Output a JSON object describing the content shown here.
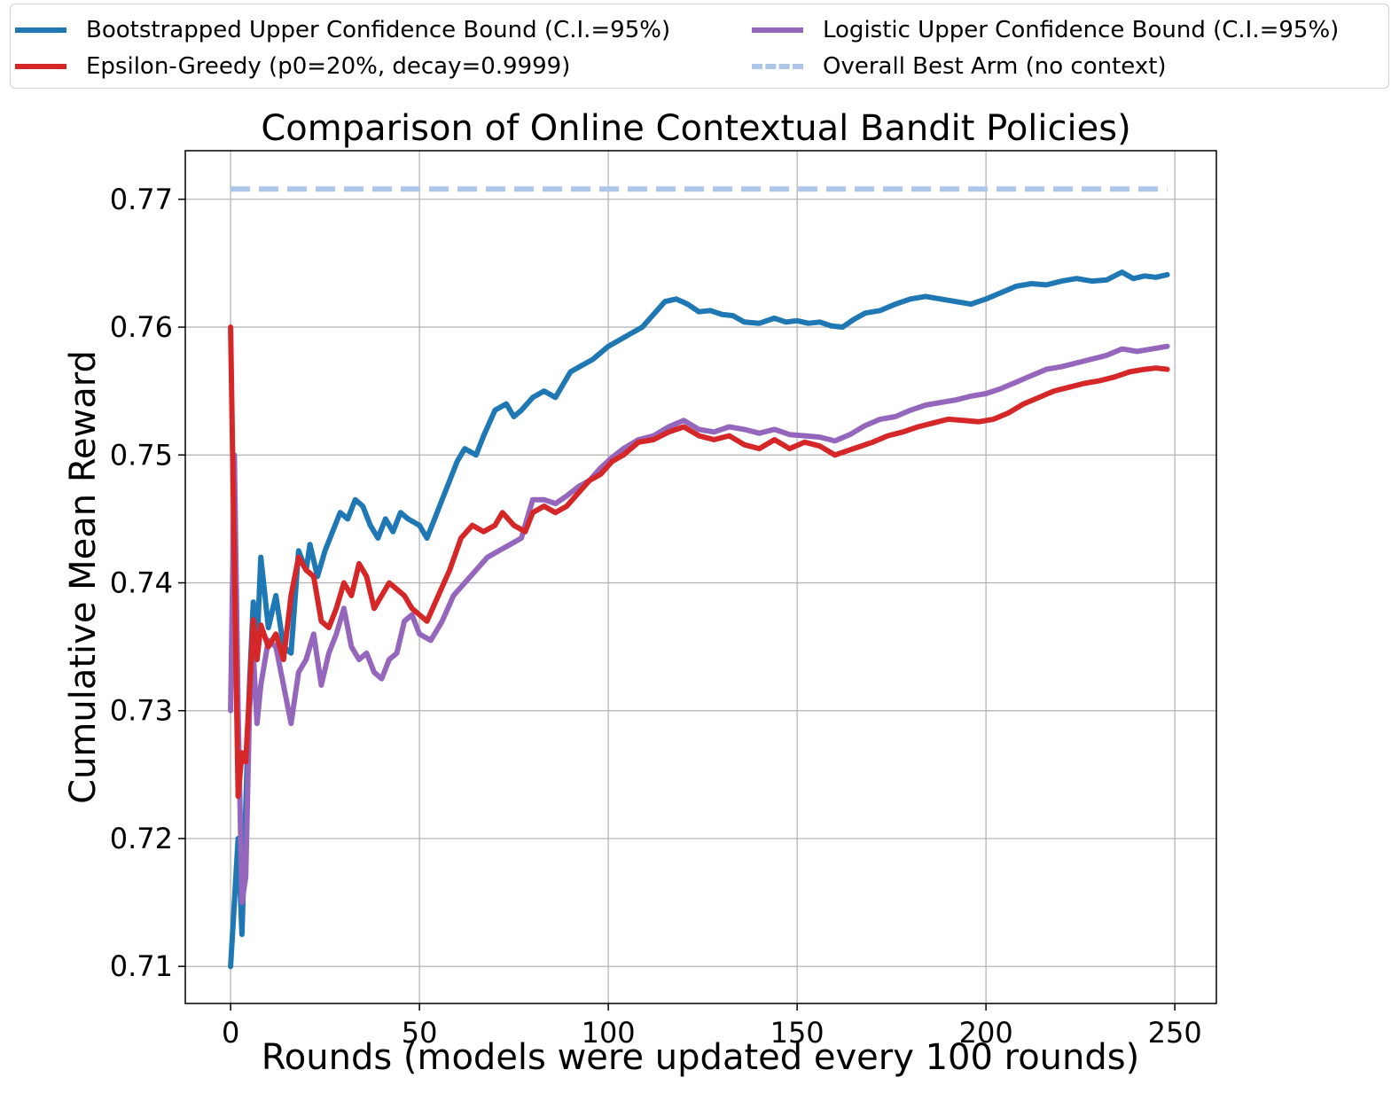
{
  "chart_data": {
    "type": "line",
    "title": "Comparison of Online Contextual Bandit Policies)",
    "xlabel": "Rounds (models were updated every 100 rounds)",
    "ylabel": "Cumulative Mean Reward",
    "xlim": [
      -12,
      261
    ],
    "ylim": [
      0.7071,
      0.7738
    ],
    "xticks": [
      0,
      50,
      100,
      150,
      200,
      250
    ],
    "yticks": [
      0.71,
      0.72,
      0.73,
      0.74,
      0.75,
      0.76,
      0.77
    ],
    "xtick_labels": [
      "0",
      "50",
      "100",
      "150",
      "200",
      "250"
    ],
    "ytick_labels": [
      "0.71",
      "0.72",
      "0.73",
      "0.74",
      "0.75",
      "0.76",
      "0.77"
    ],
    "grid": true,
    "legend_placement": "above plot, two columns",
    "series": [
      {
        "name": "Bootstrapped Upper Confidence Bound (C.I.=95%)",
        "color": "#1f77b4",
        "style": "solid",
        "points": [
          [
            0,
            0.71
          ],
          [
            2,
            0.72
          ],
          [
            3,
            0.7125
          ],
          [
            5,
            0.732
          ],
          [
            6,
            0.7385
          ],
          [
            7,
            0.735
          ],
          [
            8,
            0.742
          ],
          [
            10,
            0.7365
          ],
          [
            12,
            0.739
          ],
          [
            14,
            0.735
          ],
          [
            16,
            0.7345
          ],
          [
            18,
            0.7425
          ],
          [
            20,
            0.741
          ],
          [
            21,
            0.743
          ],
          [
            23,
            0.7405
          ],
          [
            25,
            0.7425
          ],
          [
            27,
            0.744
          ],
          [
            29,
            0.7455
          ],
          [
            31,
            0.745
          ],
          [
            33,
            0.7465
          ],
          [
            35,
            0.746
          ],
          [
            37,
            0.7445
          ],
          [
            39,
            0.7435
          ],
          [
            41,
            0.745
          ],
          [
            43,
            0.744
          ],
          [
            45,
            0.7455
          ],
          [
            47,
            0.745
          ],
          [
            50,
            0.7445
          ],
          [
            52,
            0.7435
          ],
          [
            54,
            0.745
          ],
          [
            56,
            0.7465
          ],
          [
            58,
            0.748
          ],
          [
            60,
            0.7495
          ],
          [
            62,
            0.7505
          ],
          [
            65,
            0.75
          ],
          [
            67,
            0.7515
          ],
          [
            70,
            0.7535
          ],
          [
            73,
            0.754
          ],
          [
            75,
            0.753
          ],
          [
            77,
            0.7535
          ],
          [
            80,
            0.7545
          ],
          [
            83,
            0.755
          ],
          [
            86,
            0.7545
          ],
          [
            88,
            0.7555
          ],
          [
            90,
            0.7565
          ],
          [
            93,
            0.757
          ],
          [
            96,
            0.7575
          ],
          [
            100,
            0.7585
          ],
          [
            103,
            0.759
          ],
          [
            106,
            0.7595
          ],
          [
            109,
            0.76
          ],
          [
            112,
            0.761
          ],
          [
            115,
            0.762
          ],
          [
            118,
            0.7622
          ],
          [
            121,
            0.7618
          ],
          [
            124,
            0.7612
          ],
          [
            127,
            0.7613
          ],
          [
            130,
            0.761
          ],
          [
            133,
            0.7609
          ],
          [
            136,
            0.7604
          ],
          [
            140,
            0.7603
          ],
          [
            144,
            0.7607
          ],
          [
            147,
            0.7604
          ],
          [
            150,
            0.7605
          ],
          [
            153,
            0.7603
          ],
          [
            156,
            0.7604
          ],
          [
            159,
            0.7601
          ],
          [
            162,
            0.76
          ],
          [
            165,
            0.7606
          ],
          [
            168,
            0.7611
          ],
          [
            172,
            0.7613
          ],
          [
            176,
            0.7618
          ],
          [
            180,
            0.7622
          ],
          [
            184,
            0.7624
          ],
          [
            188,
            0.7622
          ],
          [
            192,
            0.762
          ],
          [
            196,
            0.7618
          ],
          [
            200,
            0.7622
          ],
          [
            204,
            0.7627
          ],
          [
            208,
            0.7632
          ],
          [
            212,
            0.7634
          ],
          [
            216,
            0.7633
          ],
          [
            220,
            0.7636
          ],
          [
            224,
            0.7638
          ],
          [
            228,
            0.7636
          ],
          [
            232,
            0.7637
          ],
          [
            236,
            0.7643
          ],
          [
            239,
            0.7638
          ],
          [
            242,
            0.764
          ],
          [
            245,
            0.7639
          ],
          [
            248,
            0.7641
          ]
        ]
      },
      {
        "name": "Epsilon-Greedy (p0=20%, decay=0.9999)",
        "color": "#d62728",
        "style": "solid",
        "points": [
          [
            0,
            0.76
          ],
          [
            2,
            0.7233
          ],
          [
            3,
            0.7267
          ],
          [
            4,
            0.726
          ],
          [
            6,
            0.7371
          ],
          [
            7,
            0.734
          ],
          [
            8,
            0.7367
          ],
          [
            10,
            0.735
          ],
          [
            12,
            0.736
          ],
          [
            14,
            0.734
          ],
          [
            16,
            0.739
          ],
          [
            18,
            0.742
          ],
          [
            20,
            0.741
          ],
          [
            22,
            0.7405
          ],
          [
            24,
            0.737
          ],
          [
            26,
            0.7365
          ],
          [
            28,
            0.738
          ],
          [
            30,
            0.74
          ],
          [
            32,
            0.739
          ],
          [
            34,
            0.7415
          ],
          [
            36,
            0.7405
          ],
          [
            38,
            0.738
          ],
          [
            40,
            0.739
          ],
          [
            42,
            0.74
          ],
          [
            44,
            0.7395
          ],
          [
            46,
            0.739
          ],
          [
            48,
            0.738
          ],
          [
            50,
            0.7375
          ],
          [
            52,
            0.737
          ],
          [
            55,
            0.739
          ],
          [
            58,
            0.741
          ],
          [
            61,
            0.7435
          ],
          [
            64,
            0.7445
          ],
          [
            67,
            0.744
          ],
          [
            70,
            0.7445
          ],
          [
            72,
            0.7455
          ],
          [
            75,
            0.7445
          ],
          [
            78,
            0.744
          ],
          [
            80,
            0.7455
          ],
          [
            83,
            0.746
          ],
          [
            86,
            0.7455
          ],
          [
            89,
            0.746
          ],
          [
            92,
            0.747
          ],
          [
            95,
            0.748
          ],
          [
            98,
            0.7485
          ],
          [
            101,
            0.7495
          ],
          [
            104,
            0.75
          ],
          [
            108,
            0.751
          ],
          [
            112,
            0.7512
          ],
          [
            116,
            0.7518
          ],
          [
            120,
            0.7522
          ],
          [
            124,
            0.7515
          ],
          [
            128,
            0.7512
          ],
          [
            132,
            0.7515
          ],
          [
            136,
            0.7508
          ],
          [
            140,
            0.7505
          ],
          [
            144,
            0.7512
          ],
          [
            148,
            0.7505
          ],
          [
            152,
            0.751
          ],
          [
            156,
            0.7507
          ],
          [
            160,
            0.75
          ],
          [
            163,
            0.7503
          ],
          [
            166,
            0.7506
          ],
          [
            170,
            0.751
          ],
          [
            174,
            0.7515
          ],
          [
            178,
            0.7518
          ],
          [
            182,
            0.7522
          ],
          [
            186,
            0.7525
          ],
          [
            190,
            0.7528
          ],
          [
            194,
            0.7527
          ],
          [
            198,
            0.7526
          ],
          [
            202,
            0.7528
          ],
          [
            206,
            0.7533
          ],
          [
            210,
            0.754
          ],
          [
            214,
            0.7545
          ],
          [
            218,
            0.755
          ],
          [
            222,
            0.7553
          ],
          [
            226,
            0.7556
          ],
          [
            230,
            0.7558
          ],
          [
            234,
            0.7561
          ],
          [
            238,
            0.7565
          ],
          [
            242,
            0.7567
          ],
          [
            245,
            0.7568
          ],
          [
            248,
            0.7567
          ]
        ]
      },
      {
        "name": "Logistic Upper Confidence Bound (C.I.=95%)",
        "color": "#9467bd",
        "style": "solid",
        "points": [
          [
            0,
            0.73
          ],
          [
            1,
            0.75
          ],
          [
            2,
            0.73
          ],
          [
            3,
            0.715
          ],
          [
            4,
            0.717
          ],
          [
            5,
            0.73
          ],
          [
            6,
            0.7345
          ],
          [
            7,
            0.729
          ],
          [
            8,
            0.732
          ],
          [
            10,
            0.7355
          ],
          [
            12,
            0.735
          ],
          [
            14,
            0.732
          ],
          [
            16,
            0.729
          ],
          [
            18,
            0.733
          ],
          [
            20,
            0.734
          ],
          [
            22,
            0.736
          ],
          [
            24,
            0.732
          ],
          [
            26,
            0.7345
          ],
          [
            28,
            0.736
          ],
          [
            30,
            0.738
          ],
          [
            32,
            0.735
          ],
          [
            34,
            0.734
          ],
          [
            36,
            0.7345
          ],
          [
            38,
            0.733
          ],
          [
            40,
            0.7325
          ],
          [
            42,
            0.734
          ],
          [
            44,
            0.7345
          ],
          [
            46,
            0.737
          ],
          [
            48,
            0.7375
          ],
          [
            50,
            0.736
          ],
          [
            53,
            0.7355
          ],
          [
            56,
            0.737
          ],
          [
            59,
            0.739
          ],
          [
            62,
            0.74
          ],
          [
            65,
            0.741
          ],
          [
            68,
            0.742
          ],
          [
            71,
            0.7425
          ],
          [
            74,
            0.743
          ],
          [
            77,
            0.7435
          ],
          [
            80,
            0.7465
          ],
          [
            83,
            0.7465
          ],
          [
            86,
            0.7462
          ],
          [
            89,
            0.7468
          ],
          [
            92,
            0.7475
          ],
          [
            95,
            0.748
          ],
          [
            98,
            0.749
          ],
          [
            101,
            0.7498
          ],
          [
            104,
            0.7505
          ],
          [
            108,
            0.7512
          ],
          [
            112,
            0.7515
          ],
          [
            116,
            0.7522
          ],
          [
            120,
            0.7527
          ],
          [
            124,
            0.752
          ],
          [
            128,
            0.7518
          ],
          [
            132,
            0.7522
          ],
          [
            136,
            0.752
          ],
          [
            140,
            0.7517
          ],
          [
            144,
            0.752
          ],
          [
            148,
            0.7516
          ],
          [
            152,
            0.7515
          ],
          [
            156,
            0.7514
          ],
          [
            160,
            0.7511
          ],
          [
            164,
            0.7516
          ],
          [
            168,
            0.7523
          ],
          [
            172,
            0.7528
          ],
          [
            176,
            0.753
          ],
          [
            180,
            0.7535
          ],
          [
            184,
            0.7539
          ],
          [
            188,
            0.7541
          ],
          [
            192,
            0.7543
          ],
          [
            196,
            0.7546
          ],
          [
            200,
            0.7548
          ],
          [
            204,
            0.7552
          ],
          [
            208,
            0.7557
          ],
          [
            212,
            0.7562
          ],
          [
            216,
            0.7567
          ],
          [
            220,
            0.7569
          ],
          [
            224,
            0.7572
          ],
          [
            228,
            0.7575
          ],
          [
            232,
            0.7578
          ],
          [
            236,
            0.7583
          ],
          [
            240,
            0.7581
          ],
          [
            244,
            0.7583
          ],
          [
            248,
            0.7585
          ]
        ]
      },
      {
        "name": "Overall Best Arm (no context)",
        "color": "#aec7e8",
        "style": "dashed",
        "points": [
          [
            0,
            0.7708
          ],
          [
            248,
            0.7708
          ]
        ]
      }
    ]
  }
}
